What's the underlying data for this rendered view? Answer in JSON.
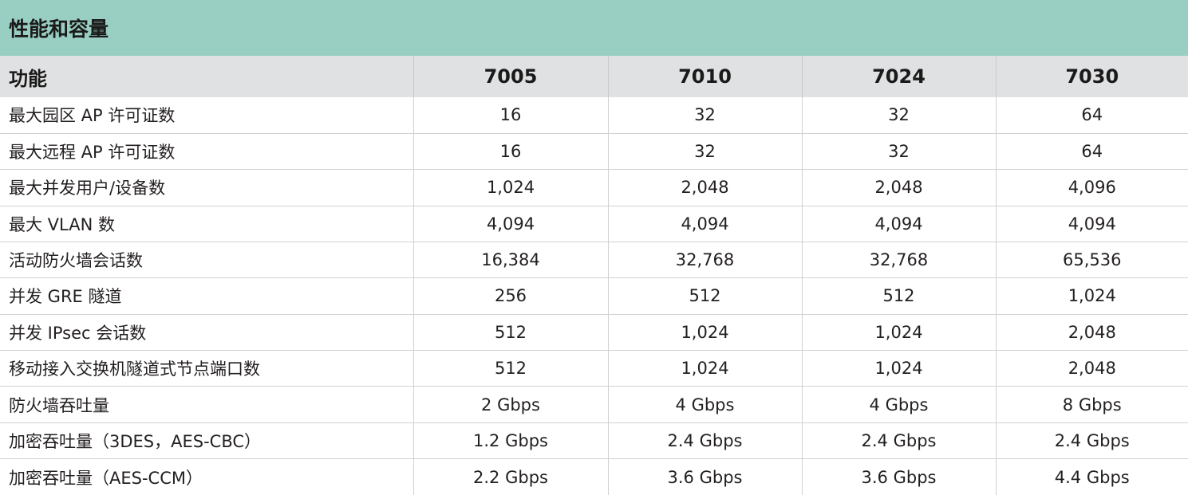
{
  "title": "性能和容量",
  "header": {
    "feature": "功能",
    "models": [
      "7005",
      "7010",
      "7024",
      "7030"
    ]
  },
  "rows": [
    {
      "feature": "最大园区 AP 许可证数",
      "values": [
        "16",
        "32",
        "32",
        "64"
      ]
    },
    {
      "feature": "最大远程 AP 许可证数",
      "values": [
        "16",
        "32",
        "32",
        "64"
      ]
    },
    {
      "feature": "最大并发用户/设备数",
      "values": [
        "1,024",
        "2,048",
        "2,048",
        "4,096"
      ]
    },
    {
      "feature": "最大 VLAN 数",
      "values": [
        "4,094",
        "4,094",
        "4,094",
        "4,094"
      ]
    },
    {
      "feature": "活动防火墙会话数",
      "values": [
        "16,384",
        "32,768",
        "32,768",
        "65,536"
      ]
    },
    {
      "feature": "并发 GRE 隧道",
      "values": [
        "256",
        "512",
        "512",
        "1,024"
      ]
    },
    {
      "feature": "并发 IPsec 会话数",
      "values": [
        "512",
        "1,024",
        "1,024",
        "2,048"
      ]
    },
    {
      "feature": "移动接入交换机隧道式节点端口数",
      "values": [
        "512",
        "1,024",
        "1,024",
        "2,048"
      ]
    },
    {
      "feature": "防火墙吞吐量",
      "values": [
        "2 Gbps",
        "4 Gbps",
        "4 Gbps",
        "8 Gbps"
      ]
    },
    {
      "feature": "加密吞吐量（3DES，AES-CBC）",
      "values": [
        "1.2 Gbps",
        "2.4 Gbps",
        "2.4 Gbps",
        "2.4 Gbps"
      ]
    },
    {
      "feature": "加密吞吐量（AES-CCM）",
      "values": [
        "2.2 Gbps",
        "3.6 Gbps",
        "3.6 Gbps",
        "4.4 Gbps"
      ]
    }
  ],
  "colors": {
    "title_bg": "#99cfc2",
    "header_bg": "#e0e1e2",
    "grid_line": "#d0d1d2",
    "text": "#231f20"
  }
}
